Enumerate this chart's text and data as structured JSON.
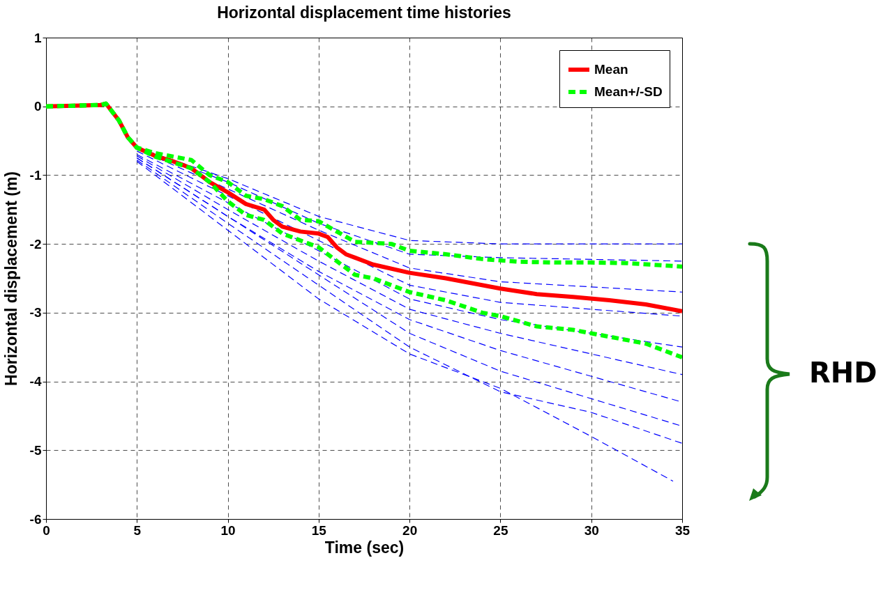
{
  "chart_data": {
    "type": "line",
    "title": "Horizontal displacement time histories",
    "xlabel": "Time (sec)",
    "ylabel": "Horizontal displacement (m)",
    "xlim": [
      0,
      35
    ],
    "xticks": [
      0,
      5,
      10,
      15,
      20,
      25,
      30,
      35
    ],
    "ylim": [
      -6,
      1
    ],
    "yticks": [
      -6,
      -5,
      -4,
      -3,
      -2,
      -1,
      0,
      1
    ],
    "grid": true,
    "legend": "top right",
    "annotations": [
      "RHD"
    ],
    "series": [
      {
        "color": "#0000ff",
        "line_style": "dashed",
        "x": [
          5,
          10,
          15,
          20,
          25,
          35
        ],
        "values": [
          -0.6,
          -1.05,
          -1.6,
          -1.95,
          -2.0,
          -2.0
        ]
      },
      {
        "color": "#0000ff",
        "line_style": "dashed",
        "x": [
          5,
          10,
          15,
          20,
          25,
          35
        ],
        "values": [
          -0.6,
          -1.1,
          -1.7,
          -2.15,
          -2.2,
          -2.25
        ]
      },
      {
        "color": "#0000ff",
        "line_style": "dashed",
        "x": [
          5,
          10,
          15,
          20,
          25,
          35
        ],
        "values": [
          -0.62,
          -1.2,
          -1.8,
          -2.35,
          -2.55,
          -2.7
        ]
      },
      {
        "color": "#0000ff",
        "line_style": "dashed",
        "x": [
          5,
          10,
          15,
          20,
          25,
          35
        ],
        "values": [
          -0.65,
          -1.3,
          -1.95,
          -2.6,
          -2.85,
          -3.05
        ]
      },
      {
        "color": "#0000ff",
        "line_style": "dashed",
        "x": [
          5,
          10,
          15,
          20,
          25,
          35
        ],
        "values": [
          -0.7,
          -1.4,
          -2.1,
          -2.8,
          -3.1,
          -3.5
        ]
      },
      {
        "color": "#0000ff",
        "line_style": "dashed",
        "x": [
          5,
          10,
          15,
          20,
          25,
          35
        ],
        "values": [
          -0.72,
          -1.5,
          -2.25,
          -2.95,
          -3.3,
          -3.9
        ]
      },
      {
        "color": "#0000ff",
        "line_style": "dashed",
        "x": [
          5,
          10,
          15,
          20,
          25,
          35
        ],
        "values": [
          -0.75,
          -1.6,
          -2.4,
          -3.1,
          -3.55,
          -4.3
        ]
      },
      {
        "color": "#0000ff",
        "line_style": "dashed",
        "x": [
          5,
          10,
          15,
          20,
          25,
          35
        ],
        "values": [
          -0.75,
          -1.6,
          -2.45,
          -3.3,
          -3.85,
          -4.65
        ]
      },
      {
        "color": "#0000ff",
        "line_style": "dashed",
        "x": [
          5,
          10,
          15,
          20,
          25,
          30,
          35
        ],
        "values": [
          -0.78,
          -1.7,
          -2.6,
          -3.5,
          -4.15,
          -4.45,
          -4.9
        ]
      },
      {
        "color": "#0000ff",
        "line_style": "dashed",
        "x": [
          5,
          10,
          15,
          20,
          25,
          30,
          34.5
        ],
        "values": [
          -0.8,
          -1.8,
          -2.8,
          -3.6,
          -4.1,
          -4.8,
          -5.45
        ]
      },
      {
        "name": "Mean",
        "color": "#ff0000",
        "line_style": "solid",
        "x": [
          0,
          3,
          3.3,
          4,
          4.5,
          5,
          6,
          7,
          8,
          9,
          10,
          11,
          12,
          12.5,
          13,
          14,
          15,
          15.5,
          16,
          16.5,
          17,
          18,
          20,
          22,
          25,
          27,
          29,
          31,
          33,
          35
        ],
        "values": [
          0,
          0.02,
          0.04,
          -0.2,
          -0.45,
          -0.6,
          -0.72,
          -0.8,
          -0.9,
          -1.1,
          -1.25,
          -1.42,
          -1.5,
          -1.65,
          -1.75,
          -1.82,
          -1.85,
          -1.9,
          -2.05,
          -2.15,
          -2.2,
          -2.3,
          -2.42,
          -2.5,
          -2.65,
          -2.73,
          -2.77,
          -2.82,
          -2.88,
          -2.98
        ]
      },
      {
        "name": "Mean+/-SD",
        "color": "#00ff00",
        "line_style": "dashed",
        "x": [
          0,
          3,
          3.3,
          4,
          4.5,
          5,
          6,
          8,
          9,
          10,
          11,
          12,
          13,
          14,
          15,
          16,
          17,
          19,
          20,
          22,
          24,
          26,
          28,
          30,
          32,
          35
        ],
        "values": [
          0,
          0.02,
          0.04,
          -0.2,
          -0.45,
          -0.6,
          -0.68,
          -0.78,
          -1.0,
          -1.1,
          -1.3,
          -1.35,
          -1.45,
          -1.65,
          -1.67,
          -1.82,
          -1.97,
          -2.0,
          -2.1,
          -2.15,
          -2.22,
          -2.26,
          -2.27,
          -2.27,
          -2.28,
          -2.33
        ]
      },
      {
        "color": "#00ff00",
        "line_style": "dashed",
        "x": [
          0,
          3,
          3.3,
          4,
          4.5,
          5,
          6,
          8,
          9,
          10,
          11,
          12,
          13,
          14,
          15,
          16,
          17,
          18,
          20,
          22,
          24,
          25,
          27,
          29,
          31,
          33,
          35
        ],
        "values": [
          0,
          0.02,
          0.04,
          -0.2,
          -0.45,
          -0.6,
          -0.73,
          -0.9,
          -1.1,
          -1.38,
          -1.58,
          -1.65,
          -1.85,
          -1.95,
          -2.05,
          -2.25,
          -2.45,
          -2.5,
          -2.7,
          -2.82,
          -3.0,
          -3.05,
          -3.2,
          -3.25,
          -3.35,
          -3.45,
          -3.65
        ]
      }
    ]
  }
}
